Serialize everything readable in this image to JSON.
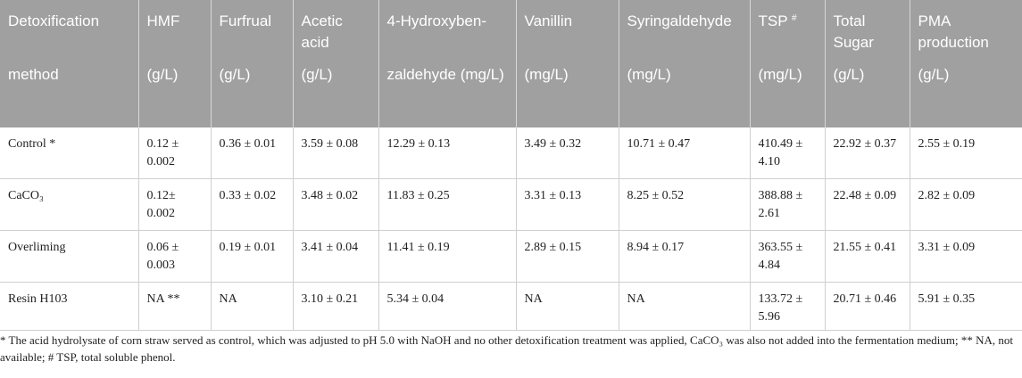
{
  "table": {
    "header_row1": [
      "Detoxification",
      "HMF",
      "Furfrual",
      "Acetic acid",
      "4-Hydroxyben-",
      "Vanillin",
      "Syringaldehyde",
      "TSP",
      "Total Sugar",
      "PMA production"
    ],
    "tsp_mark": "#",
    "header_row2": [
      "method",
      "(g/L)",
      "(g/L)",
      "(g/L)",
      "zaldehyde (mg/L)",
      "(mg/L)",
      "(mg/L)",
      "(mg/L)",
      "(g/L)",
      "(g/L)"
    ],
    "rows": [
      [
        "Control *",
        "0.12 ± 0.002",
        "0.36 ± 0.01",
        "3.59 ± 0.08",
        "12.29 ± 0.13",
        "3.49 ± 0.32",
        "10.71 ± 0.47",
        "410.49 ± 4.10",
        "22.92 ± 0.37",
        "2.55 ± 0.19"
      ],
      [
        "CaCO₃",
        "0.12± 0.002",
        "0.33 ± 0.02",
        "3.48 ± 0.02",
        "11.83 ± 0.25",
        "3.31 ± 0.13",
        "8.25 ± 0.52",
        "388.88 ± 2.61",
        "22.48 ± 0.09",
        "2.82 ± 0.09"
      ],
      [
        "Overliming",
        "0.06 ± 0.003",
        "0.19 ± 0.01",
        "3.41 ± 0.04",
        "11.41 ± 0.19",
        "2.89 ± 0.15",
        "8.94 ± 0.17",
        "363.55 ± 4.84",
        "21.55 ± 0.41",
        "3.31 ± 0.09"
      ],
      [
        "Resin H103",
        "NA **",
        "NA",
        "3.10 ± 0.21",
        "5.34 ± 0.04",
        "NA",
        "NA",
        "133.72 ± 5.96",
        "20.71 ± 0.46",
        "5.91 ± 0.35"
      ]
    ]
  },
  "footnote": "* The acid hydrolysate of corn straw served as control, which was adjusted to pH 5.0 with NaOH and no other detoxification treatment was applied, CaCO₃ was also not added into the fermentation medium; ** NA, not available; # TSP, total soluble phenol."
}
